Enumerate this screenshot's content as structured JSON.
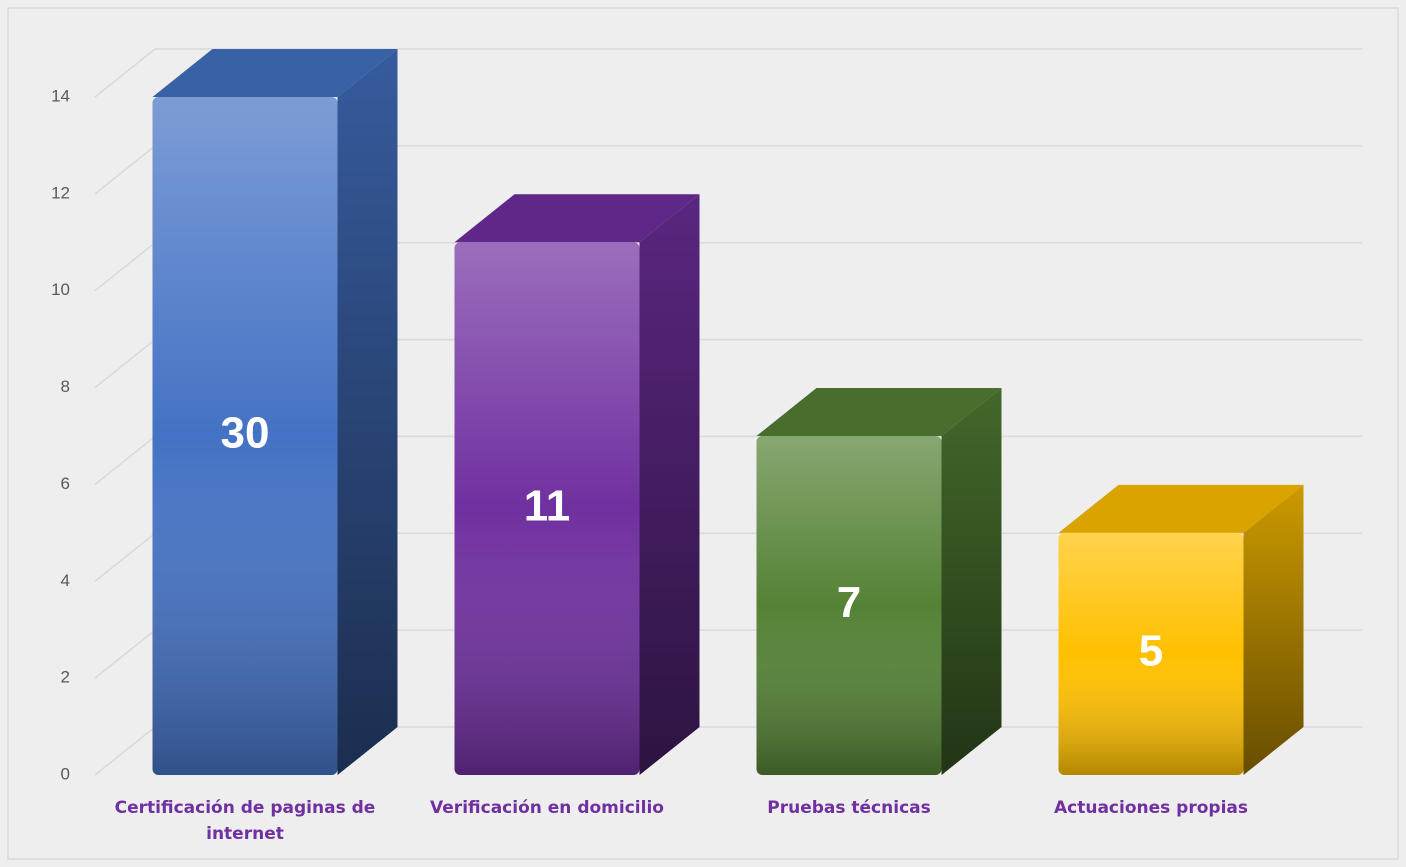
{
  "chart_data": {
    "type": "bar3d",
    "categories": [
      "Certificación de paginas de internet",
      "Verificación en domicilio",
      "Pruebas técnicas",
      "Actuaciones propias"
    ],
    "values": [
      30,
      11,
      7,
      5
    ],
    "colors": [
      "#4472c4",
      "#7030a0",
      "#548235",
      "#ffc000"
    ],
    "ylim": [
      0,
      14
    ],
    "yticks": [
      0,
      2,
      4,
      6,
      8,
      10,
      12,
      14
    ],
    "grid": true
  }
}
